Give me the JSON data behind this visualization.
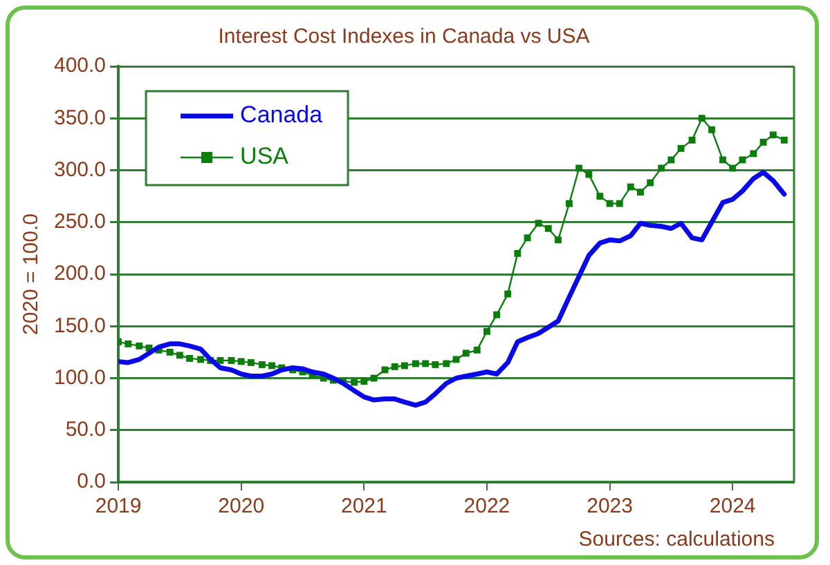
{
  "chart_data": {
    "type": "line",
    "title": "Interest Cost Indexes in Canada vs USA",
    "ylabel": "2020 = 100.0",
    "annotations": [
      "Sources: calculations"
    ],
    "x": [
      2019,
      2019.08,
      2019.17,
      2019.25,
      2019.33,
      2019.42,
      2019.5,
      2019.58,
      2019.67,
      2019.75,
      2019.83,
      2019.92,
      2020,
      2020.08,
      2020.17,
      2020.25,
      2020.33,
      2020.42,
      2020.5,
      2020.58,
      2020.67,
      2020.75,
      2020.83,
      2020.92,
      2021,
      2021.08,
      2021.17,
      2021.25,
      2021.33,
      2021.42,
      2021.5,
      2021.58,
      2021.67,
      2021.75,
      2021.83,
      2021.92,
      2022,
      2022.08,
      2022.17,
      2022.25,
      2022.33,
      2022.42,
      2022.5,
      2022.58,
      2022.67,
      2022.75,
      2022.83,
      2022.92,
      2023,
      2023.08,
      2023.17,
      2023.25,
      2023.33,
      2023.42,
      2023.5,
      2023.58,
      2023.67,
      2023.75,
      2023.83,
      2023.92,
      2024,
      2024.08,
      2024.17,
      2024.25,
      2024.33,
      2024.42
    ],
    "series": [
      {
        "name": "Canada",
        "color": "#0a0ae6",
        "marker": "none",
        "values": [
          116,
          115,
          118,
          124,
          130,
          133,
          133,
          131,
          128,
          118,
          110,
          108,
          104,
          102,
          102,
          104,
          108,
          110,
          109,
          106,
          104,
          100,
          95,
          88,
          82,
          79,
          80,
          80,
          77,
          74,
          77,
          85,
          95,
          100,
          102,
          104,
          106,
          104,
          115,
          135,
          139,
          143,
          149,
          155,
          178,
          198,
          218,
          230,
          233,
          232,
          237,
          249,
          247,
          246,
          244,
          249,
          235,
          233,
          250,
          269,
          272,
          280,
          292,
          298,
          290,
          277
        ]
      },
      {
        "name": "USA",
        "color": "#0a7d0a",
        "marker": "square",
        "values": [
          135,
          133,
          131,
          129,
          127,
          125,
          122,
          119,
          118,
          117,
          117,
          117,
          116,
          115,
          113,
          112,
          110,
          108,
          106,
          103,
          100,
          98,
          97,
          96,
          97,
          100,
          108,
          111,
          112,
          114,
          114,
          113,
          114,
          118,
          124,
          127,
          145,
          161,
          181,
          220,
          235,
          249,
          244,
          233,
          268,
          302,
          296,
          275,
          268,
          268,
          284,
          279,
          288,
          302,
          310,
          321,
          329,
          350,
          339,
          310,
          302,
          310,
          316,
          327,
          334,
          329
        ]
      }
    ],
    "xlim": [
      2019,
      2024.5
    ],
    "xticks": [
      2019,
      2020,
      2021,
      2022,
      2023,
      2024
    ],
    "ylim": [
      0,
      400
    ],
    "yticks": [
      {
        "value": 0,
        "label": "0.0"
      },
      {
        "value": 50,
        "label": "50.0"
      },
      {
        "value": 100,
        "label": "100.0"
      },
      {
        "value": 150,
        "label": "150.0"
      },
      {
        "value": 200,
        "label": "200.0"
      },
      {
        "value": 250,
        "label": "250.0"
      },
      {
        "value": 300,
        "label": "300.0"
      },
      {
        "value": 350,
        "label": "350.0"
      },
      {
        "value": 400,
        "label": "400.0"
      }
    ],
    "grid": "y",
    "legend": "top left"
  }
}
